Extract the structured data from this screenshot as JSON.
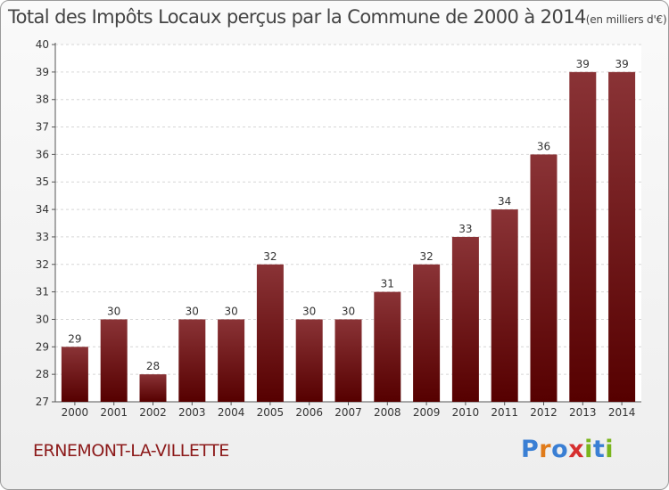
{
  "chart_data": {
    "type": "bar",
    "title": "Total des Impôts Locaux perçus par la Commune de 2000 à 2014",
    "unit_note": "(en milliers d'€)",
    "categories": [
      "2000",
      "2001",
      "2002",
      "2003",
      "2004",
      "2005",
      "2006",
      "2007",
      "2008",
      "2009",
      "2010",
      "2011",
      "2012",
      "2013",
      "2014"
    ],
    "values": [
      29,
      30,
      28,
      30,
      30,
      32,
      30,
      30,
      31,
      32,
      33,
      34,
      36,
      39,
      39
    ],
    "ylim": [
      27,
      40
    ],
    "yticks": [
      27,
      28,
      29,
      30,
      31,
      32,
      33,
      34,
      35,
      36,
      37,
      38,
      39,
      40
    ],
    "grid": true,
    "xlabel": "",
    "ylabel": "",
    "bar_color_top": "#8a3336",
    "bar_color_bottom": "#560000",
    "grid_color": "#d6d6d6"
  },
  "footer": {
    "commune": "ERNEMONT-LA-VILLETTE",
    "logo_letters": [
      {
        "ch": "P",
        "color": "#3a7fd4"
      },
      {
        "ch": "r",
        "color": "#e07b1a"
      },
      {
        "ch": "o",
        "color": "#3a7fd4"
      },
      {
        "ch": "x",
        "color": "#d62f2f"
      },
      {
        "ch": "i",
        "color": "#7ab51d"
      },
      {
        "ch": "t",
        "color": "#3a7fd4"
      },
      {
        "ch": "i",
        "color": "#7ab51d"
      }
    ]
  }
}
